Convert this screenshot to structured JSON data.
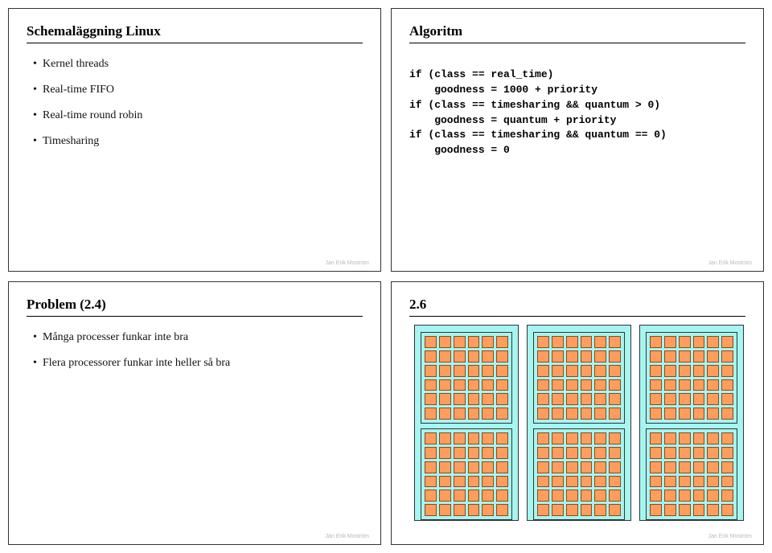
{
  "slide1": {
    "title": "Schemaläggning Linux",
    "bullets": [
      "Kernel threads",
      "Real-time FIFO",
      "Real-time round robin",
      "Timesharing"
    ],
    "footer": "Jan Erik Moström"
  },
  "slide2": {
    "title": "Algoritm",
    "code": "if (class == real_time)\n    goodness = 1000 + priority\nif (class == timesharing && quantum > 0)\n    goodness = quantum + priority\nif (class == timesharing && quantum == 0)\n    goodness = 0",
    "footer": "Jan Erik Moström"
  },
  "slide3": {
    "title": "Problem (2.4)",
    "bullets": [
      "Många processer funkar inte bra",
      "Flera processorer funkar inte heller så bra"
    ],
    "footer": "Jan Erik Moström"
  },
  "slide4": {
    "title": "2.6",
    "footer": "Jan Erik Moström",
    "panels": {
      "panel_count": 3,
      "blocks_per_panel": 2,
      "grid_cols": 6,
      "grid_rows": 6,
      "panel_bg": "#a6f5f0",
      "cell_bg": "#ff9d5c",
      "cell_border": "#8a4a1f",
      "panel_border": "#333333"
    }
  }
}
